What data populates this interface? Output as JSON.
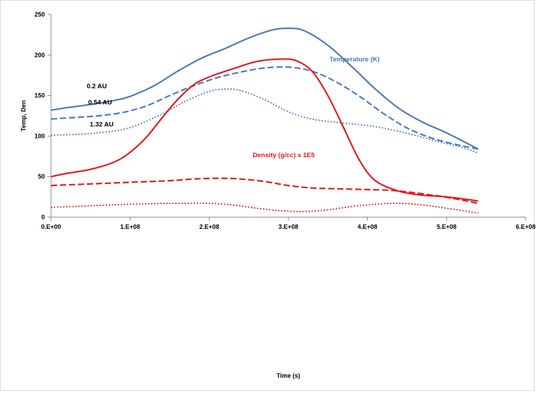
{
  "chart_data": {
    "type": "line",
    "xlabel": "Time (s)",
    "ylabel": "Temp, Den",
    "xlim": [
      0,
      600000000
    ],
    "ylim": [
      0,
      250
    ],
    "x_ticks": [
      {
        "value": 0,
        "label": "0.E+00"
      },
      {
        "value": 100000000,
        "label": "1.E+08"
      },
      {
        "value": 200000000,
        "label": "2.E+08"
      },
      {
        "value": 300000000,
        "label": "3.E+08"
      },
      {
        "value": 400000000,
        "label": "4.E+08"
      },
      {
        "value": 500000000,
        "label": "5.E+08"
      },
      {
        "value": 600000000,
        "label": "6.E+08"
      }
    ],
    "y_ticks": [
      {
        "value": 0,
        "label": "0"
      },
      {
        "value": 50,
        "label": "50"
      },
      {
        "value": 100,
        "label": "100"
      },
      {
        "value": 150,
        "label": "150"
      },
      {
        "value": 200,
        "label": "200"
      },
      {
        "value": 250,
        "label": "250"
      }
    ],
    "grid": false,
    "series": [
      {
        "color": "#4a7ab7",
        "style": "solid",
        "x": [
          0,
          20000000,
          50000000,
          80000000,
          100000000,
          130000000,
          160000000,
          190000000,
          220000000,
          250000000,
          280000000,
          300000000,
          320000000,
          350000000,
          380000000,
          410000000,
          440000000,
          470000000,
          500000000,
          540000000
        ],
        "y": [
          132,
          135,
          139,
          144,
          149,
          162,
          180,
          196,
          208,
          221,
          231,
          233,
          230,
          212,
          186,
          158,
          134,
          117,
          104,
          84
        ]
      },
      {
        "color": "#4a7ab7",
        "style": "dashed",
        "x": [
          0,
          30000000,
          60000000,
          90000000,
          120000000,
          150000000,
          180000000,
          210000000,
          240000000,
          270000000,
          300000000,
          330000000,
          360000000,
          390000000,
          420000000,
          450000000,
          480000000,
          510000000,
          540000000
        ],
        "y": [
          121,
          123,
          125,
          129,
          137,
          150,
          162,
          172,
          179,
          184,
          185,
          180,
          167,
          149,
          128,
          110,
          98,
          90,
          84
        ]
      },
      {
        "color": "#4a7ab7",
        "style": "dotted",
        "x": [
          0,
          30000000,
          60000000,
          90000000,
          110000000,
          140000000,
          170000000,
          200000000,
          220000000,
          240000000,
          270000000,
          300000000,
          330000000,
          360000000,
          400000000,
          430000000,
          460000000,
          490000000,
          520000000,
          540000000
        ],
        "y": [
          101,
          102,
          104,
          108,
          114,
          127,
          143,
          155,
          158,
          156,
          145,
          130,
          121,
          117,
          113,
          108,
          101,
          93,
          86,
          79
        ]
      },
      {
        "color": "#e31a1c",
        "style": "solid",
        "x": [
          0,
          20000000,
          50000000,
          80000000,
          100000000,
          120000000,
          140000000,
          160000000,
          180000000,
          200000000,
          230000000,
          260000000,
          290000000,
          310000000,
          330000000,
          350000000,
          370000000,
          390000000,
          410000000,
          440000000,
          470000000,
          500000000,
          540000000
        ],
        "y": [
          50,
          54,
          59,
          68,
          80,
          98,
          122,
          145,
          163,
          173,
          183,
          192,
          195,
          193,
          180,
          150,
          110,
          70,
          45,
          32,
          27,
          25,
          20
        ]
      },
      {
        "color": "#e31a1c",
        "style": "dashed",
        "x": [
          0,
          50000000,
          100000000,
          150000000,
          180000000,
          210000000,
          240000000,
          270000000,
          300000000,
          330000000,
          360000000,
          400000000,
          430000000,
          460000000,
          490000000,
          520000000,
          540000000
        ],
        "y": [
          39,
          41,
          43,
          45,
          47,
          48,
          47,
          44,
          39,
          36,
          35,
          34,
          33,
          30,
          26,
          21,
          17
        ]
      },
      {
        "color": "#e31a1c",
        "style": "dotted",
        "x": [
          0,
          50000000,
          100000000,
          150000000,
          200000000,
          230000000,
          260000000,
          290000000,
          320000000,
          350000000,
          380000000,
          410000000,
          440000000,
          470000000,
          500000000,
          540000000
        ],
        "y": [
          12,
          14,
          16,
          17,
          17,
          15,
          11,
          8,
          7,
          9,
          13,
          16,
          17,
          15,
          11,
          5
        ]
      }
    ],
    "annotations": [
      {
        "text": "Temperature (K)",
        "x": 352000000,
        "y": 192,
        "color": "#4a7ab7"
      },
      {
        "text": "0.2 AU",
        "x": 45000000,
        "y": 159,
        "color": "#000000"
      },
      {
        "text": "0.54 AU",
        "x": 47000000,
        "y": 139,
        "color": "#000000"
      },
      {
        "text": "1.32 AU",
        "x": 49000000,
        "y": 112,
        "color": "#000000"
      },
      {
        "text": "Density (g/cc) x 1E5",
        "x": 255000000,
        "y": 74,
        "color": "#e31a1c"
      }
    ]
  }
}
